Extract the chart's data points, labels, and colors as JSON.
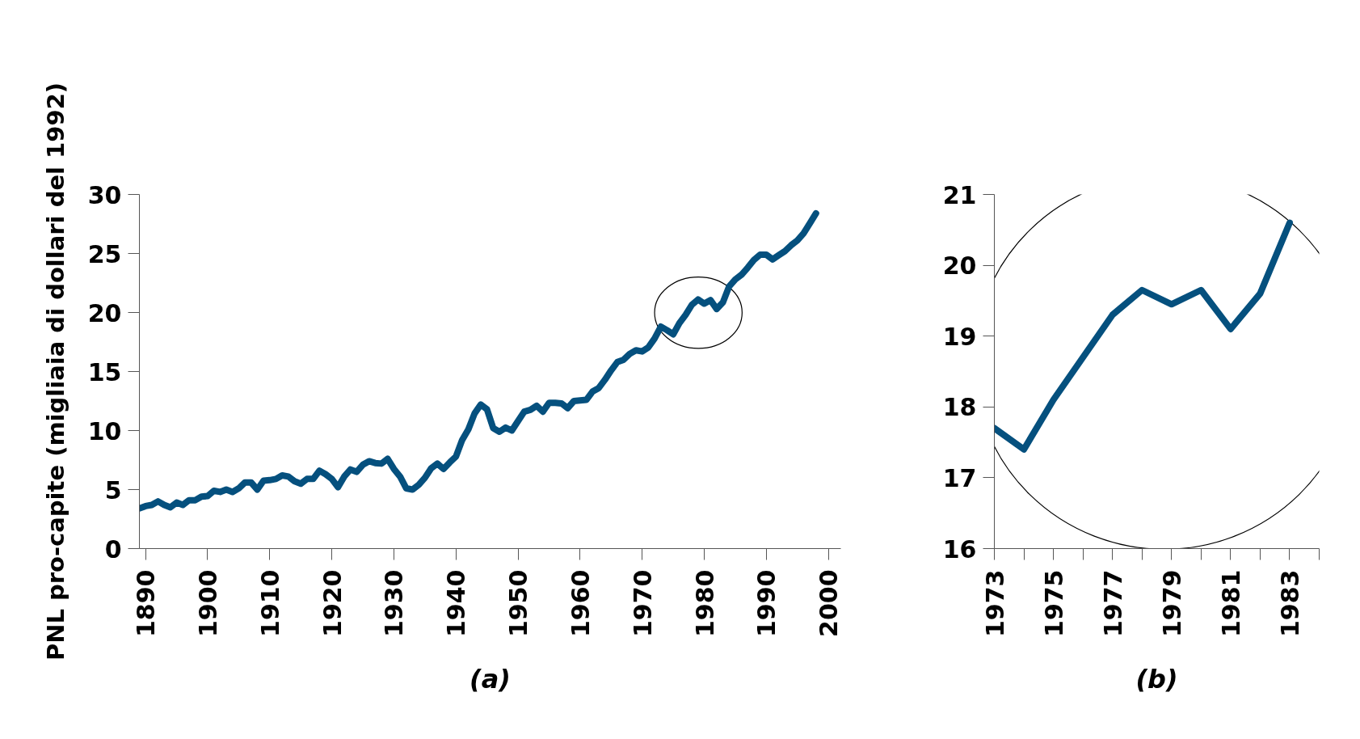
{
  "chart_data": [
    {
      "type": "line",
      "xlabel": "(a)",
      "ylabel": "PNL pro-capite (migliaia di dollari del 1992)",
      "x": [
        1889,
        1890,
        1891,
        1892,
        1893,
        1894,
        1895,
        1896,
        1897,
        1898,
        1899,
        1900,
        1901,
        1902,
        1903,
        1904,
        1905,
        1906,
        1907,
        1908,
        1909,
        1910,
        1911,
        1912,
        1913,
        1914,
        1915,
        1916,
        1917,
        1918,
        1919,
        1920,
        1921,
        1922,
        1923,
        1924,
        1925,
        1926,
        1927,
        1928,
        1929,
        1930,
        1931,
        1932,
        1933,
        1934,
        1935,
        1936,
        1937,
        1938,
        1939,
        1940,
        1941,
        1942,
        1943,
        1944,
        1945,
        1946,
        1947,
        1948,
        1949,
        1950,
        1951,
        1952,
        1953,
        1954,
        1955,
        1956,
        1957,
        1958,
        1959,
        1960,
        1961,
        1962,
        1963,
        1964,
        1965,
        1966,
        1967,
        1968,
        1969,
        1970,
        1971,
        1972,
        1973,
        1974,
        1975,
        1976,
        1977,
        1978,
        1979,
        1980,
        1981,
        1982,
        1983,
        1984,
        1985,
        1986,
        1987,
        1988,
        1989,
        1990,
        1991,
        1992,
        1993,
        1994,
        1995,
        1996,
        1997,
        1998
      ],
      "series": [
        {
          "color": "#05507e",
          "values": [
            3.4,
            3.6,
            3.7,
            4.0,
            3.7,
            3.5,
            3.9,
            3.7,
            4.1,
            4.1,
            4.4,
            4.45,
            4.9,
            4.8,
            5.0,
            4.8,
            5.1,
            5.6,
            5.6,
            5.0,
            5.75,
            5.8,
            5.9,
            6.2,
            6.1,
            5.7,
            5.5,
            5.9,
            5.9,
            6.6,
            6.3,
            5.9,
            5.2,
            6.1,
            6.7,
            6.5,
            7.1,
            7.4,
            7.25,
            7.2,
            7.6,
            6.75,
            6.1,
            5.1,
            5.0,
            5.4,
            6.0,
            6.8,
            7.2,
            6.75,
            7.3,
            7.8,
            9.2,
            10.1,
            11.45,
            12.2,
            11.8,
            10.2,
            9.9,
            10.25,
            10.0,
            10.8,
            11.6,
            11.75,
            12.1,
            11.6,
            12.35,
            12.35,
            12.3,
            11.9,
            12.5,
            12.55,
            12.6,
            13.3,
            13.6,
            14.3,
            15.1,
            15.8,
            16.0,
            16.5,
            16.8,
            16.7,
            17.05,
            17.8,
            18.8,
            18.5,
            18.15,
            19.1,
            19.8,
            20.65,
            21.1,
            20.75,
            21.05,
            20.3,
            20.85,
            22.2,
            22.8,
            23.2,
            23.8,
            24.45,
            24.9,
            24.9,
            24.5,
            24.85,
            25.2,
            25.7,
            26.1,
            26.7,
            27.55,
            28.4
          ]
        }
      ],
      "xlim": [
        1889,
        2002
      ],
      "ylim": [
        0,
        30
      ],
      "xticks": [
        1890,
        1900,
        1910,
        1920,
        1930,
        1940,
        1950,
        1960,
        1970,
        1980,
        1990,
        2000
      ],
      "yticks": [
        0,
        5,
        10,
        15,
        20,
        25,
        30
      ]
    },
    {
      "type": "line",
      "xlabel": "(b)",
      "x": [
        1973,
        1974,
        1975,
        1976,
        1977,
        1978,
        1979,
        1980,
        1981,
        1982,
        1983
      ],
      "series": [
        {
          "color": "#05507e",
          "values": [
            17.7,
            17.4,
            18.1,
            18.7,
            19.3,
            19.65,
            19.45,
            19.65,
            19.1,
            19.6,
            20.6
          ]
        }
      ],
      "xlim": [
        1973,
        1984
      ],
      "ylim": [
        16,
        21
      ],
      "xticks": [
        1973,
        {
          "value": 1974,
          "label": null
        },
        1975,
        {
          "value": 1976,
          "label": null
        },
        1977,
        {
          "value": 1978,
          "label": null
        },
        1979,
        {
          "value": 1980,
          "label": null
        },
        1981,
        {
          "value": 1982,
          "label": null
        },
        1983,
        {
          "value": 1984,
          "label": null
        }
      ],
      "yticks": [
        16,
        17,
        18,
        19,
        20,
        21
      ]
    }
  ]
}
